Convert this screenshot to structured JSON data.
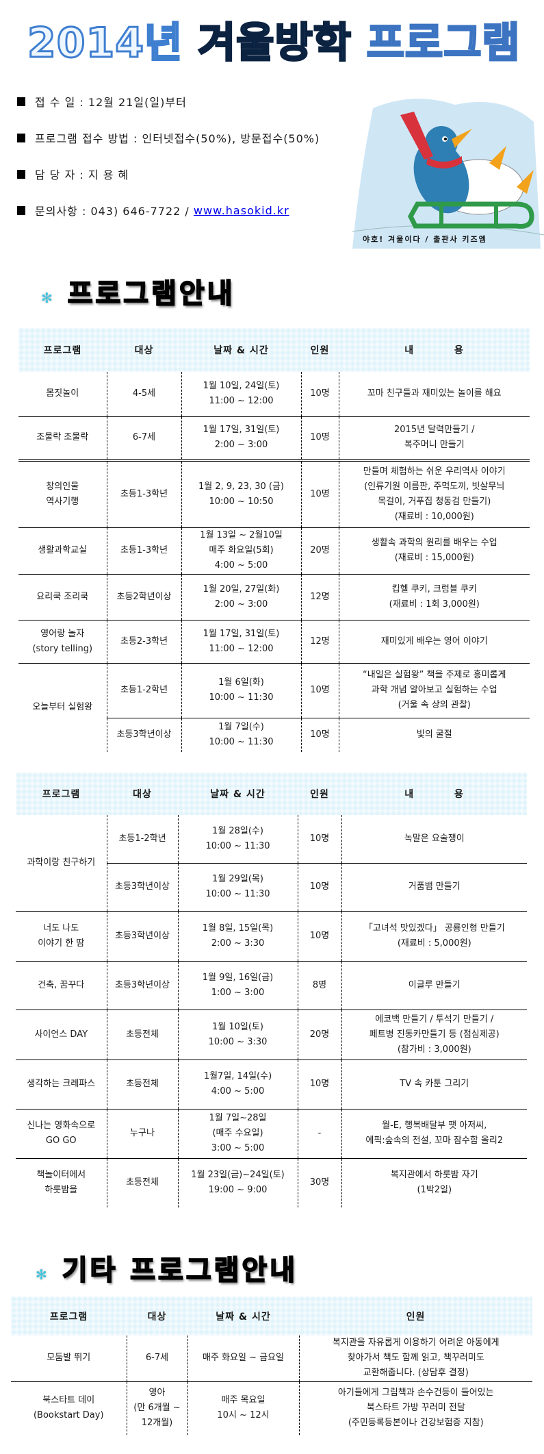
{
  "title": {
    "part1": "2014년",
    "part2": "겨울방학",
    "part3": "프로그램"
  },
  "info": [
    {
      "label": "접 수 일 : 12월 21일(일)부터"
    },
    {
      "label": "프로그램 접수 방법 : 인터넷접수(50%), 방문접수(50%)"
    },
    {
      "label": "담 당 자 : 지 용 혜"
    },
    {
      "label": "문의사항 : 043) 646-7722 / ",
      "link": "www.hasokid.kr"
    }
  ],
  "image": {
    "caption": "야호! 겨울이다 / 출판사 키즈엠",
    "colors": {
      "sky": "#cfe6f5",
      "penguin": "#2e7fb4",
      "scarf": "#d8323c",
      "sled": "#2f9a4a",
      "beak": "#f3a21c"
    }
  },
  "section1": {
    "heading": "프로그램안내",
    "icon": "snowflake-icon"
  },
  "section2": {
    "heading": "기타 프로그램안내",
    "icon": "snowflake-icon"
  },
  "tables": [
    {
      "headers": [
        "프로그램",
        "대상",
        "날짜 & 시간",
        "인원",
        "내          용"
      ],
      "rows": [
        [
          {
            "t": "몸짓놀이"
          },
          {
            "t": "4-5세"
          },
          {
            "t": "1월 10일, 24일(토)\n11:00 ~ 12:00"
          },
          {
            "t": "10명"
          },
          {
            "t": "꼬마 친구들과 재미있는 놀이를 해요"
          }
        ],
        [
          {
            "t": "조물락 조물락"
          },
          {
            "t": "6-7세"
          },
          {
            "t": "1월 17일, 31일(토)\n2:00 ~ 3:00"
          },
          {
            "t": "10명"
          },
          {
            "t": "2015년 달력만들기 /\n복주머니 만들기"
          }
        ],
        [
          {
            "t": "창의인물\n역사기행"
          },
          {
            "t": "초등1-3학년"
          },
          {
            "t": "1월 2, 9, 23, 30 (금)\n10:00 ~ 10:50"
          },
          {
            "t": "10명"
          },
          {
            "t": "만들며 체험하는 쉬운 우리역사 이야기\n(인류기원 이름판, 주먹도끼, 빗살무늬\n목걸이, 거푸집 청동검 만들기)\n(재료비 : 10,000원)"
          }
        ],
        [
          {
            "t": "생활과학교실"
          },
          {
            "t": "초등1-3학년"
          },
          {
            "t": "1월 13일 ~ 2월10일\n매주 화요일(5회)\n4:00 ~ 5:00"
          },
          {
            "t": "20명"
          },
          {
            "t": "생활속 과학의 원리를 배우는 수업\n(재료비 : 15,000원)"
          }
        ],
        [
          {
            "t": "요리쿡 조리쿡"
          },
          {
            "t": "초등2학년이상"
          },
          {
            "t": "1월 20일, 27일(화)\n2:00 ~ 3:00"
          },
          {
            "t": "12명"
          },
          {
            "t": "킵헬 쿠키, 크럼블 쿠키\n(재료비 : 1회 3,000원)"
          }
        ],
        [
          {
            "t": "영어랑 놀자\n(story telling)"
          },
          {
            "t": "초등2-3학년"
          },
          {
            "t": "1월 17일, 31일(토)\n11:00 ~ 12:00"
          },
          {
            "t": "12명"
          },
          {
            "t": "재미있게 배우는 영어 이야기"
          }
        ],
        [
          {
            "t": "오늘부터 실험왕",
            "rowspan": 2
          },
          {
            "t": "초등1-2학년"
          },
          {
            "t": "1월 6일(화)\n10:00 ~ 11:30"
          },
          {
            "t": "10명"
          },
          {
            "t": "“내일은 실험왕” 책을 주제로 흥미롭게\n과학 개념 알아보고 실험하는 수업\n(거울 속 상의 관찰)"
          }
        ],
        [
          {
            "t": "초등3학년이상"
          },
          {
            "t": "1월 7일(수)\n10:00 ~ 11:30"
          },
          {
            "t": "10명"
          },
          {
            "t": "빛의 굴절"
          }
        ]
      ]
    },
    {
      "headers": [
        "프로그램",
        "대상",
        "날짜 & 시간",
        "인원",
        "내          용"
      ],
      "rows": [
        [
          {
            "t": "과학이랑 친구하기",
            "rowspan": 2
          },
          {
            "t": "초등1-2학년"
          },
          {
            "t": "1월 28일(수)\n10:00 ~ 11:30"
          },
          {
            "t": "10명"
          },
          {
            "t": "녹말은 요술쟁이"
          }
        ],
        [
          {
            "t": "초등3학년이상"
          },
          {
            "t": "1월 29일(목)\n10:00 ~ 11:30"
          },
          {
            "t": "10명"
          },
          {
            "t": "거품뱀 만들기"
          }
        ],
        [
          {
            "t": "너도 나도\n이야기 한 땀"
          },
          {
            "t": "초등3학년이상"
          },
          {
            "t": "1월 8일, 15일(목)\n2:00 ~ 3:30"
          },
          {
            "t": "10명"
          },
          {
            "t": "「고녀석 맛있겠다」 공룡인형 만들기\n(재료비 : 5,000원)"
          }
        ],
        [
          {
            "t": "건축, 꿈꾸다"
          },
          {
            "t": "초등3학년이상"
          },
          {
            "t": "1월 9일, 16일(금)\n1:00 ~ 3:00"
          },
          {
            "t": "8명"
          },
          {
            "t": "이글루 만들기"
          }
        ],
        [
          {
            "t": "사이언스 DAY"
          },
          {
            "t": "초등전체"
          },
          {
            "t": "1월 10일(토)\n10:00 ~ 3:30"
          },
          {
            "t": "20명"
          },
          {
            "t": "에코백 만들기 / 투석기 만들기 /\n페트병 진동카만들기 등 (점심제공)\n(참가비 : 3,000원)"
          }
        ],
        [
          {
            "t": "생각하는 크레파스"
          },
          {
            "t": "초등전체"
          },
          {
            "t": "1월7일, 14일(수)\n4:00 ~ 5:00"
          },
          {
            "t": "10명"
          },
          {
            "t": "TV 속 카툰 그리기"
          }
        ],
        [
          {
            "t": "신나는 영화속으로\nGO GO"
          },
          {
            "t": "누구나"
          },
          {
            "t": "1월 7일~28일\n(매주 수요일)\n3:00 ~ 5:00"
          },
          {
            "t": "-"
          },
          {
            "t": "월-E, 행복배달부 팻 아저씨,\n에픽:숲속의 전설, 꼬마 잠수함 올리2"
          }
        ],
        [
          {
            "t": "책놀이터에서\n하룻밤을"
          },
          {
            "t": "초등전체"
          },
          {
            "t": "1월 23일(금)~24일(토)\n19:00 ~ 9:00"
          },
          {
            "t": "30명"
          },
          {
            "t": "복지관에서 하룻밤 자기\n(1박2일)"
          }
        ]
      ]
    },
    {
      "headers": [
        "프로그램",
        "대상",
        "날짜 & 시간",
        "인원"
      ],
      "rows": [
        [
          {
            "t": "모둠발 뛰기"
          },
          {
            "t": "6-7세"
          },
          {
            "t": "매주 화요일 ~ 금요일"
          },
          {
            "t": "복지관을 자유롭게 이용하기 어려운 아동에게\n찾아가서 책도 함께 읽고, 책꾸러미도\n교환해줍니다. (상담후 결정)"
          }
        ],
        [
          {
            "t": "북스타트 데이\n(Bookstart Day)"
          },
          {
            "t": "영아\n(만 6개월 ~\n12개월)"
          },
          {
            "t": "매주 목요일\n10시 ~ 12시"
          },
          {
            "t": "아기들에게 그림책과 손수건등이 들어있는\n북스타트 가방 꾸러미 전달\n(주민등록등본이나 건강보험증 지참)"
          }
        ]
      ]
    }
  ]
}
